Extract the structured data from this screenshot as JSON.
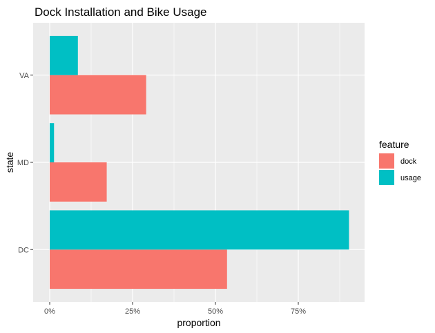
{
  "chart_data": {
    "type": "bar",
    "orientation": "horizontal",
    "title": "Dock Installation and Bike Usage",
    "xlabel": "proportion",
    "ylabel": "state",
    "categories": [
      "DC",
      "MD",
      "VA"
    ],
    "series": [
      {
        "name": "dock",
        "values": [
          0.535,
          0.172,
          0.291
        ],
        "color": "#F8766D"
      },
      {
        "name": "usage",
        "values": [
          0.903,
          0.013,
          0.085
        ],
        "color": "#00BFC4"
      }
    ],
    "xlim": [
      -0.05,
      0.95
    ],
    "xticks": [
      0,
      0.25,
      0.5,
      0.75
    ],
    "xtick_labels": [
      "0%",
      "25%",
      "50%",
      "75%"
    ],
    "legend": {
      "title": "feature",
      "position": "right"
    },
    "panel_color": "#EBEBEB",
    "grid_color": "#FFFFFF",
    "grid": true
  }
}
